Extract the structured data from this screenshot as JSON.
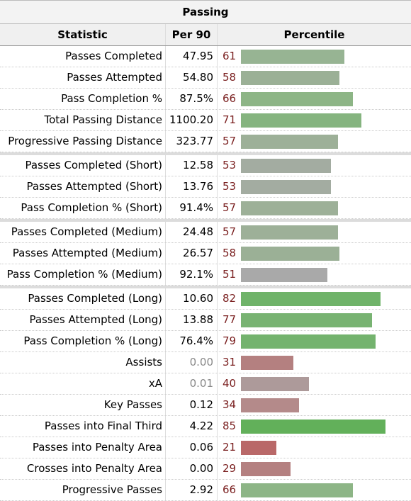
{
  "table": {
    "title": "Passing",
    "headers": {
      "statistic": "Statistic",
      "per90": "Per 90",
      "percentile": "Percentile"
    },
    "groups": [
      [
        {
          "stat": "Passes Completed",
          "per90": "47.95",
          "pct": 61,
          "color": "#97b493"
        },
        {
          "stat": "Passes Attempted",
          "per90": "54.80",
          "pct": 58,
          "color": "#9bb096"
        },
        {
          "stat": "Pass Completion %",
          "per90": "87.5%",
          "pct": 66,
          "color": "#8db586"
        },
        {
          "stat": "Total Passing Distance",
          "per90": "1100.20",
          "pct": 71,
          "color": "#85b47f"
        },
        {
          "stat": "Progressive Passing Distance",
          "per90": "323.77",
          "pct": 57,
          "color": "#9db098"
        }
      ],
      [
        {
          "stat": "Passes Completed (Short)",
          "per90": "12.58",
          "pct": 53,
          "color": "#a3aca1"
        },
        {
          "stat": "Passes Attempted (Short)",
          "per90": "13.76",
          "pct": 53,
          "color": "#a3aca1"
        },
        {
          "stat": "Pass Completion % (Short)",
          "per90": "91.4%",
          "pct": 57,
          "color": "#9db098"
        }
      ],
      [
        {
          "stat": "Passes Completed (Medium)",
          "per90": "24.48",
          "pct": 57,
          "color": "#9db098"
        },
        {
          "stat": "Passes Attempted (Medium)",
          "per90": "26.57",
          "pct": 58,
          "color": "#9bb096"
        },
        {
          "stat": "Pass Completion % (Medium)",
          "per90": "92.1%",
          "pct": 51,
          "color": "#a9a9a9"
        }
      ],
      [
        {
          "stat": "Passes Completed (Long)",
          "per90": "10.60",
          "pct": 82,
          "color": "#6fb369"
        },
        {
          "stat": "Passes Attempted (Long)",
          "per90": "13.88",
          "pct": 77,
          "color": "#78b372"
        },
        {
          "stat": "Pass Completion % (Long)",
          "per90": "76.4%",
          "pct": 79,
          "color": "#74b36e"
        },
        {
          "stat": "Assists",
          "per90": "0.00",
          "pct": 31,
          "color": "#b48080",
          "zero": true
        },
        {
          "stat": "xA",
          "per90": "0.01",
          "pct": 40,
          "color": "#ad9a9a",
          "zero": true
        },
        {
          "stat": "Key Passes",
          "per90": "0.12",
          "pct": 34,
          "color": "#b48a8a"
        },
        {
          "stat": "Passes into Final Third",
          "per90": "4.22",
          "pct": 85,
          "color": "#62b05a"
        },
        {
          "stat": "Passes into Penalty Area",
          "per90": "0.06",
          "pct": 21,
          "color": "#b96868"
        },
        {
          "stat": "Crosses into Penalty Area",
          "per90": "0.00",
          "pct": 29,
          "color": "#b48080"
        },
        {
          "stat": "Progressive Passes",
          "per90": "2.92",
          "pct": 66,
          "color": "#8db586"
        }
      ]
    ]
  }
}
